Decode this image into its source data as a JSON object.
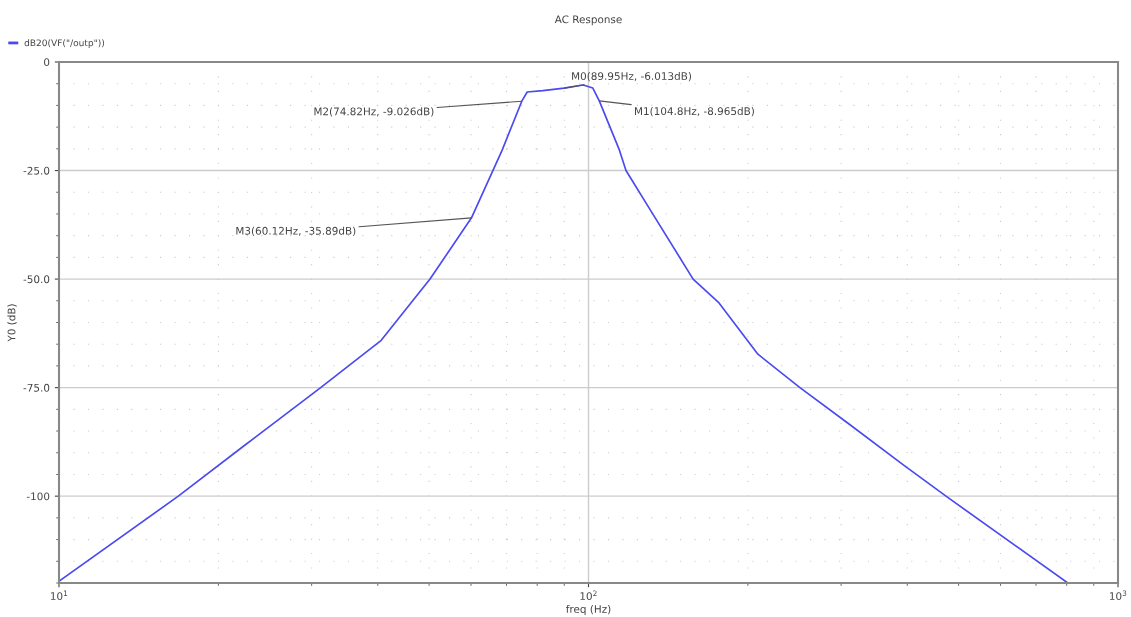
{
  "chart_data": {
    "type": "line",
    "title": "AC Response",
    "xlabel": "freq (Hz)",
    "ylabel": "Y0 (dB)",
    "log": "x",
    "grid": true,
    "legend": "top left",
    "marker": "none",
    "line_style": "solid",
    "xlim": [
      10,
      1000
    ],
    "ylim": [
      -120,
      0
    ],
    "xticks": [
      {
        "value": 10,
        "label": "10$^{1}$"
      },
      {
        "value": 100,
        "label": "10$^{2}$"
      },
      {
        "value": 1000,
        "label": "10$^{3}$"
      }
    ],
    "yticks": [
      {
        "value": 0,
        "label": "0"
      },
      {
        "value": -25,
        "label": "-25.0"
      },
      {
        "value": -50,
        "label": "-50.0"
      },
      {
        "value": -75,
        "label": "-75.0"
      },
      {
        "value": -100,
        "label": "-100"
      }
    ],
    "series": [
      {
        "name": "dB20(VF(\"/outp\"))",
        "color": "#4a4af0",
        "x": [
          10,
          16.8,
          22.3,
          31.2,
          40.6,
          50.2,
          60.12,
          68.7,
          74.82,
          76.6,
          82,
          89.95,
          97.7,
          101.9,
          104.8,
          114.4,
          117.7,
          130.1,
          157.6,
          176.4,
          208.9,
          250.8,
          309.1,
          394.3,
          473.3,
          804
        ],
        "values": [
          -119.6,
          -100,
          -88.5,
          -75,
          -64.1,
          -50,
          -35.89,
          -20.3,
          -9.026,
          -6.9,
          -6.6,
          -6.013,
          -5.3,
          -6.0,
          -8.965,
          -20.3,
          -25,
          -33.6,
          -50,
          -55.5,
          -67.3,
          -75,
          -83.2,
          -92.9,
          -100,
          -120
        ]
      }
    ],
    "annotations": [
      {
        "text": "M0(89.95Hz, -6.013dB)",
        "x": 89.95,
        "y": -6.013
      },
      {
        "text": "M1(104.8Hz, -8.965dB)",
        "x": 104.8,
        "y": -8.965
      },
      {
        "text": "M2(74.82Hz, -9.026dB)",
        "x": 74.82,
        "y": -9.026
      },
      {
        "text": "M3(60.12Hz, -35.89dB)",
        "x": 60.12,
        "y": -35.89
      }
    ]
  }
}
